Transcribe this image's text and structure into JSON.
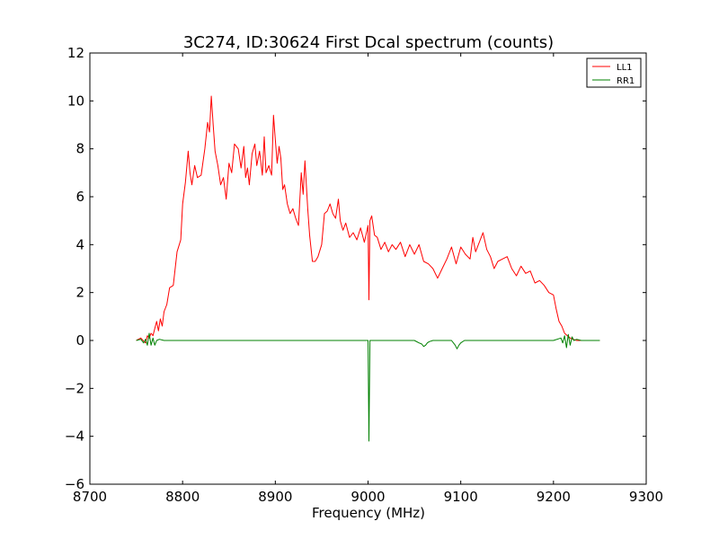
{
  "chart_data": {
    "type": "line",
    "title": "3C274, ID:30624 First Dcal spectrum (counts)",
    "xlabel": "Frequency (MHz)",
    "ylabel": "",
    "xlim": [
      8700,
      9300
    ],
    "ylim": [
      -6,
      12
    ],
    "xticks": [
      8700,
      8800,
      8900,
      9000,
      9100,
      9200,
      9300
    ],
    "yticks": [
      -6,
      -4,
      -2,
      0,
      2,
      4,
      6,
      8,
      10,
      12
    ],
    "xtick_labels": [
      "8700",
      "8800",
      "8900",
      "9000",
      "9100",
      "9200",
      "9300"
    ],
    "ytick_labels": [
      "−6",
      "−4",
      "−2",
      "0",
      "2",
      "4",
      "6",
      "8",
      "10",
      "12"
    ],
    "grid": false,
    "legend_position": "top-right",
    "series": [
      {
        "name": "LL1",
        "color": "#ff0000",
        "x": [
          8750,
          8755,
          8760,
          8762,
          8764,
          8766,
          8768,
          8770,
          8772,
          8774,
          8776,
          8778,
          8780,
          8783,
          8786,
          8790,
          8794,
          8798,
          8800,
          8803,
          8806,
          8808,
          8810,
          8813,
          8816,
          8820,
          8824,
          8827,
          8829,
          8831,
          8833,
          8835,
          8838,
          8841,
          8844,
          8847,
          8850,
          8853,
          8856,
          8860,
          8863,
          8866,
          8868,
          8870,
          8872,
          8875,
          8878,
          8880,
          8883,
          8886,
          8888,
          8890,
          8893,
          8896,
          8898,
          8900,
          8902,
          8904,
          8906,
          8908,
          8910,
          8913,
          8916,
          8919,
          8922,
          8925,
          8928,
          8930,
          8932,
          8935,
          8937,
          8940,
          8943,
          8946,
          8950,
          8953,
          8956,
          8959,
          8962,
          8965,
          8968,
          8970,
          8973,
          8976,
          8980,
          8984,
          8988,
          8992,
          8996,
          9000,
          9001,
          9002,
          9004,
          9007,
          9010,
          9014,
          9018,
          9022,
          9026,
          9030,
          9035,
          9040,
          9045,
          9050,
          9055,
          9060,
          9065,
          9070,
          9075,
          9080,
          9085,
          9090,
          9095,
          9100,
          9105,
          9110,
          9113,
          9116,
          9120,
          9124,
          9128,
          9132,
          9136,
          9140,
          9145,
          9150,
          9155,
          9160,
          9165,
          9170,
          9175,
          9180,
          9185,
          9190,
          9195,
          9200,
          9203,
          9206,
          9209,
          9212,
          9215,
          9218,
          9221,
          9225,
          9230,
          9240,
          9250
        ],
        "values": [
          0,
          0.1,
          -0.1,
          0.2,
          0.1,
          0.3,
          0.2,
          0.5,
          0.8,
          0.4,
          0.9,
          0.6,
          1.2,
          1.5,
          2.2,
          2.3,
          3.7,
          4.2,
          5.7,
          6.6,
          7.9,
          7.0,
          6.5,
          7.3,
          6.8,
          6.9,
          8.0,
          9.1,
          8.7,
          10.2,
          9.0,
          7.9,
          7.3,
          6.5,
          6.8,
          5.9,
          7.4,
          7.0,
          8.2,
          8.0,
          7.2,
          8.1,
          6.8,
          7.2,
          6.5,
          7.8,
          8.2,
          7.3,
          7.9,
          6.9,
          8.5,
          7.0,
          7.3,
          6.9,
          9.4,
          8.4,
          7.4,
          8.1,
          7.6,
          6.3,
          6.5,
          5.7,
          5.3,
          5.5,
          5.1,
          4.8,
          7.0,
          6.1,
          7.5,
          5.5,
          4.4,
          3.3,
          3.3,
          3.5,
          4.0,
          5.3,
          5.4,
          5.7,
          5.3,
          5.1,
          5.9,
          5.0,
          4.6,
          4.9,
          4.3,
          4.5,
          4.2,
          4.7,
          4.1,
          4.8,
          1.7,
          5.0,
          5.2,
          4.4,
          4.3,
          3.8,
          4.1,
          3.7,
          4.0,
          3.8,
          4.1,
          3.5,
          4.0,
          3.6,
          4.0,
          3.3,
          3.2,
          3.0,
          2.6,
          3.0,
          3.4,
          3.9,
          3.2,
          3.9,
          3.6,
          3.4,
          4.3,
          3.7,
          4.1,
          4.5,
          3.8,
          3.5,
          3.0,
          3.3,
          3.4,
          3.5,
          3.0,
          2.7,
          3.1,
          2.8,
          2.9,
          2.4,
          2.5,
          2.3,
          2.0,
          1.9,
          1.3,
          0.8,
          0.6,
          0.3,
          0.2,
          0.1,
          0.05,
          0.0,
          0.0,
          0.0,
          0.0
        ]
      },
      {
        "name": "RR1",
        "color": "#008000",
        "x": [
          8750,
          8755,
          8758,
          8760,
          8762,
          8764,
          8766,
          8768,
          8770,
          8772,
          8775,
          8780,
          8800,
          8850,
          8900,
          8950,
          8990,
          8998,
          9000,
          9001,
          9002,
          9004,
          9010,
          9050,
          9055,
          9058,
          9060,
          9062,
          9064,
          9066,
          9070,
          9090,
          9094,
          9096,
          9098,
          9100,
          9104,
          9120,
          9150,
          9200,
          9208,
          9210,
          9212,
          9214,
          9216,
          9218,
          9220,
          9222,
          9225,
          9230,
          9240,
          9250
        ],
        "values": [
          0,
          0.05,
          -0.1,
          0.05,
          -0.2,
          0.3,
          -0.2,
          0.1,
          -0.2,
          0.0,
          0.05,
          0.0,
          0.0,
          0.0,
          0.0,
          0.0,
          0.0,
          0.0,
          0.0,
          -4.2,
          0.0,
          0.0,
          0.0,
          0.0,
          -0.1,
          -0.15,
          -0.25,
          -0.2,
          -0.1,
          -0.05,
          0.0,
          0.0,
          -0.2,
          -0.35,
          -0.2,
          -0.1,
          0.0,
          0.0,
          0.0,
          0.0,
          0.1,
          -0.1,
          0.2,
          -0.3,
          0.25,
          -0.2,
          0.15,
          0.0,
          0.05,
          0.0,
          0.0,
          0.0
        ]
      }
    ]
  }
}
